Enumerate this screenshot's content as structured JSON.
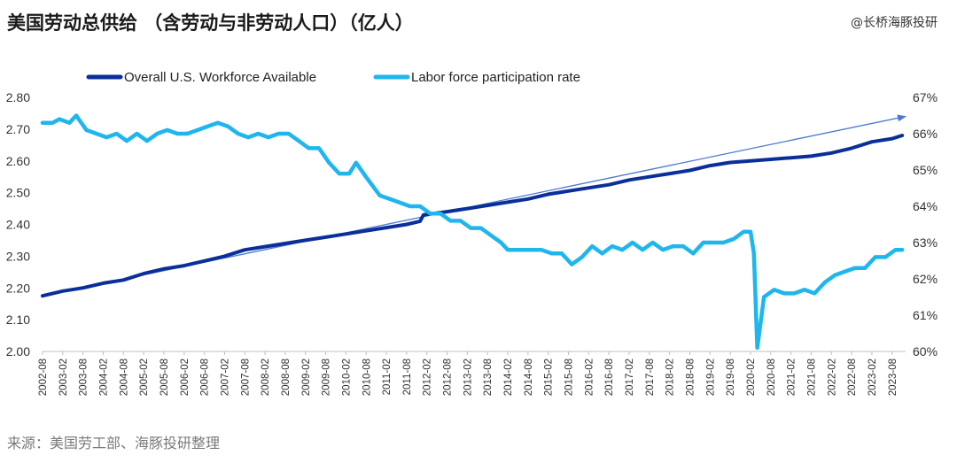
{
  "title": "美国劳动总供给 （含劳动与非劳动人口）（亿人）",
  "brand": "@长桥海豚投研",
  "source": "来源：美国劳工部、海豚投研整理",
  "chart_data": {
    "type": "line",
    "colors": {
      "workforce": "#0a2f9a",
      "participation": "#1fb6ee",
      "trend": "#4a78d0"
    },
    "legend_placement": "top",
    "grid": false,
    "x_range": [
      "2002-08",
      "2023-12"
    ],
    "x_tick_labels": [
      "2002-08",
      "2003-02",
      "2003-08",
      "2004-02",
      "2004-08",
      "2005-02",
      "2005-08",
      "2006-02",
      "2006-08",
      "2007-02",
      "2007-08",
      "2008-02",
      "2008-08",
      "2009-02",
      "2009-08",
      "2010-02",
      "2010-08",
      "2011-02",
      "2011-08",
      "2012-02",
      "2012-08",
      "2013-02",
      "2013-08",
      "2014-02",
      "2014-08",
      "2015-02",
      "2015-08",
      "2016-02",
      "2016-08",
      "2017-02",
      "2017-08",
      "2018-02",
      "2018-08",
      "2019-02",
      "2019-08",
      "2020-02",
      "2020-08",
      "2021-02",
      "2021-08",
      "2022-02",
      "2022-08",
      "2023-02",
      "2023-08"
    ],
    "y_left": {
      "min": 2.0,
      "max": 2.8,
      "tick_labels": [
        "2.00",
        "2.10",
        "2.20",
        "2.30",
        "2.40",
        "2.50",
        "2.60",
        "2.70",
        "2.80"
      ]
    },
    "y_right": {
      "min": 60,
      "max": 67,
      "tick_labels": [
        "60%",
        "61%",
        "62%",
        "63%",
        "64%",
        "65%",
        "66%",
        "67%"
      ]
    },
    "series": [
      {
        "name": "Overall U.S. Workforce Available",
        "axis": "left",
        "points": [
          [
            "2002-08",
            2.175
          ],
          [
            "2003-02",
            2.19
          ],
          [
            "2003-08",
            2.2
          ],
          [
            "2004-02",
            2.215
          ],
          [
            "2004-08",
            2.225
          ],
          [
            "2005-02",
            2.245
          ],
          [
            "2005-08",
            2.26
          ],
          [
            "2006-02",
            2.27
          ],
          [
            "2006-08",
            2.285
          ],
          [
            "2007-02",
            2.3
          ],
          [
            "2007-08",
            2.32
          ],
          [
            "2008-02",
            2.33
          ],
          [
            "2008-08",
            2.34
          ],
          [
            "2009-02",
            2.35
          ],
          [
            "2009-08",
            2.36
          ],
          [
            "2010-02",
            2.37
          ],
          [
            "2010-08",
            2.38
          ],
          [
            "2011-02",
            2.39
          ],
          [
            "2011-08",
            2.4
          ],
          [
            "2011-12",
            2.41
          ],
          [
            "2012-01",
            2.43
          ],
          [
            "2012-08",
            2.44
          ],
          [
            "2013-02",
            2.45
          ],
          [
            "2013-08",
            2.46
          ],
          [
            "2014-02",
            2.47
          ],
          [
            "2014-08",
            2.48
          ],
          [
            "2015-02",
            2.495
          ],
          [
            "2015-08",
            2.505
          ],
          [
            "2016-02",
            2.515
          ],
          [
            "2016-08",
            2.525
          ],
          [
            "2017-02",
            2.54
          ],
          [
            "2017-08",
            2.55
          ],
          [
            "2018-02",
            2.56
          ],
          [
            "2018-08",
            2.57
          ],
          [
            "2019-02",
            2.585
          ],
          [
            "2019-08",
            2.595
          ],
          [
            "2020-02",
            2.6
          ],
          [
            "2020-08",
            2.605
          ],
          [
            "2021-02",
            2.61
          ],
          [
            "2021-08",
            2.615
          ],
          [
            "2022-02",
            2.625
          ],
          [
            "2022-08",
            2.64
          ],
          [
            "2023-02",
            2.66
          ],
          [
            "2023-08",
            2.67
          ],
          [
            "2023-11",
            2.68
          ]
        ]
      },
      {
        "name": "Labor force participation rate",
        "axis": "right",
        "points": [
          [
            "2002-08",
            66.3
          ],
          [
            "2002-11",
            66.3
          ],
          [
            "2003-01",
            66.4
          ],
          [
            "2003-04",
            66.3
          ],
          [
            "2003-06",
            66.5
          ],
          [
            "2003-09",
            66.1
          ],
          [
            "2003-12",
            66.0
          ],
          [
            "2004-03",
            65.9
          ],
          [
            "2004-06",
            66.0
          ],
          [
            "2004-09",
            65.8
          ],
          [
            "2004-12",
            66.0
          ],
          [
            "2005-03",
            65.8
          ],
          [
            "2005-06",
            66.0
          ],
          [
            "2005-09",
            66.1
          ],
          [
            "2005-12",
            66.0
          ],
          [
            "2006-03",
            66.0
          ],
          [
            "2006-06",
            66.1
          ],
          [
            "2006-09",
            66.2
          ],
          [
            "2006-12",
            66.3
          ],
          [
            "2007-03",
            66.2
          ],
          [
            "2007-06",
            66.0
          ],
          [
            "2007-09",
            65.9
          ],
          [
            "2007-12",
            66.0
          ],
          [
            "2008-03",
            65.9
          ],
          [
            "2008-06",
            66.0
          ],
          [
            "2008-09",
            66.0
          ],
          [
            "2008-12",
            65.8
          ],
          [
            "2009-03",
            65.6
          ],
          [
            "2009-06",
            65.6
          ],
          [
            "2009-09",
            65.2
          ],
          [
            "2009-12",
            64.9
          ],
          [
            "2010-03",
            64.9
          ],
          [
            "2010-05",
            65.2
          ],
          [
            "2010-08",
            64.8
          ],
          [
            "2010-12",
            64.3
          ],
          [
            "2011-03",
            64.2
          ],
          [
            "2011-06",
            64.1
          ],
          [
            "2011-09",
            64.0
          ],
          [
            "2011-12",
            64.0
          ],
          [
            "2012-03",
            63.8
          ],
          [
            "2012-06",
            63.8
          ],
          [
            "2012-09",
            63.6
          ],
          [
            "2012-12",
            63.6
          ],
          [
            "2013-03",
            63.4
          ],
          [
            "2013-06",
            63.4
          ],
          [
            "2013-09",
            63.2
          ],
          [
            "2013-12",
            63.0
          ],
          [
            "2014-02",
            62.8
          ],
          [
            "2014-06",
            62.8
          ],
          [
            "2014-09",
            62.8
          ],
          [
            "2014-12",
            62.8
          ],
          [
            "2015-03",
            62.7
          ],
          [
            "2015-06",
            62.7
          ],
          [
            "2015-09",
            62.4
          ],
          [
            "2015-12",
            62.6
          ],
          [
            "2016-03",
            62.9
          ],
          [
            "2016-06",
            62.7
          ],
          [
            "2016-09",
            62.9
          ],
          [
            "2016-12",
            62.8
          ],
          [
            "2017-03",
            63.0
          ],
          [
            "2017-06",
            62.8
          ],
          [
            "2017-09",
            63.0
          ],
          [
            "2017-12",
            62.8
          ],
          [
            "2018-03",
            62.9
          ],
          [
            "2018-06",
            62.9
          ],
          [
            "2018-09",
            62.7
          ],
          [
            "2018-12",
            63.0
          ],
          [
            "2019-03",
            63.0
          ],
          [
            "2019-06",
            63.0
          ],
          [
            "2019-09",
            63.1
          ],
          [
            "2019-12",
            63.3
          ],
          [
            "2020-02",
            63.3
          ],
          [
            "2020-03",
            62.7
          ],
          [
            "2020-04",
            60.1
          ],
          [
            "2020-06",
            61.5
          ],
          [
            "2020-09",
            61.7
          ],
          [
            "2020-12",
            61.6
          ],
          [
            "2021-03",
            61.6
          ],
          [
            "2021-06",
            61.7
          ],
          [
            "2021-09",
            61.6
          ],
          [
            "2021-12",
            61.9
          ],
          [
            "2022-03",
            62.1
          ],
          [
            "2022-06",
            62.2
          ],
          [
            "2022-09",
            62.3
          ],
          [
            "2022-12",
            62.3
          ],
          [
            "2023-03",
            62.6
          ],
          [
            "2023-06",
            62.6
          ],
          [
            "2023-09",
            62.8
          ],
          [
            "2023-11",
            62.8
          ]
        ]
      }
    ],
    "annotations": [
      {
        "type": "trend-arrow",
        "from": [
          "2002-08",
          2.175
        ],
        "to": [
          "2023-12",
          2.74
        ],
        "axis": "left"
      }
    ]
  }
}
